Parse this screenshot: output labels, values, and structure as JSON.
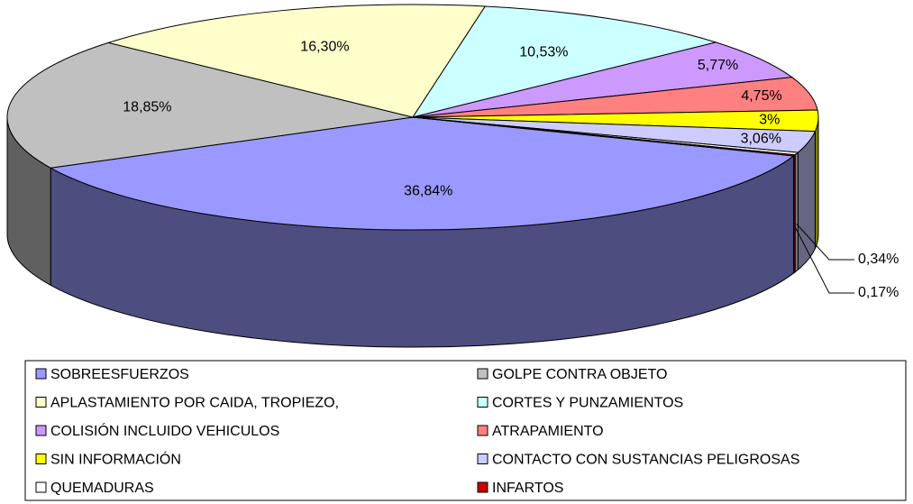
{
  "chart_data": {
    "type": "pie3d",
    "categories": [
      "SOBREESFUERZOS",
      "GOLPE CONTRA OBJETO",
      "APLASTAMIENTO POR CAIDA, TROPIEZO,",
      "CORTES Y PUNZAMIENTOS",
      "COLISIÓN INCLUIDO VEHICULOS",
      "ATRAPAMIENTO",
      "SIN INFORMACIÓN",
      "CONTACTO CON SUSTANCIAS PELIGROSAS",
      "QUEMADURAS",
      "INFARTOS"
    ],
    "values": [
      36.84,
      18.85,
      16.3,
      10.53,
      5.77,
      4.75,
      3,
      3.06,
      0.34,
      0.17
    ],
    "value_labels": [
      "36,84%",
      "18,85%",
      "16,30%",
      "10,53%",
      "5,77%",
      "4,75%",
      "3%",
      "3,06%",
      "0,34%",
      "0,17%"
    ],
    "colors": [
      "#9999ff",
      "#c0c0c0",
      "#ffffcc",
      "#ccffff",
      "#cc99ff",
      "#ff8080",
      "#ffff00",
      "#ccccff",
      "#ffffff",
      "#cc0000"
    ],
    "legend": "bottom"
  }
}
